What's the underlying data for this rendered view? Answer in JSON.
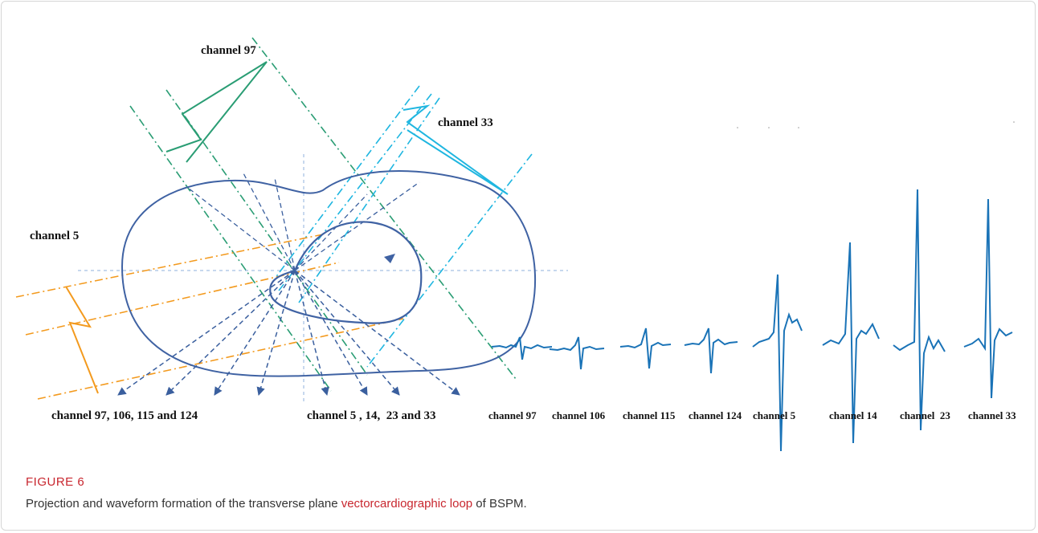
{
  "figure": {
    "labels": {
      "channel_97": "channel 97",
      "channel_33": "channel 33",
      "channel_5": "channel 5",
      "left_group": "channel 97, 106, 115 and 124",
      "right_group": "channel 5 , 14,  23 and 33"
    },
    "waveforms": [
      "channel 97",
      "channel 106",
      "channel 115",
      "channel 124",
      "channel 5",
      "channel 14",
      "channel  23",
      "channel 33"
    ],
    "number": "FIGURE 6",
    "caption": {
      "before": "Projection and waveform formation of the transverse plane ",
      "link": "vectorcardiographic loop",
      "after": " of BSPM."
    }
  }
}
